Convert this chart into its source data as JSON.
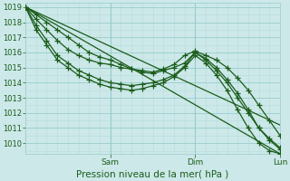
{
  "xlabel": "Pression niveau de la mer( hPa )",
  "ylim": [
    1009.3,
    1019.3
  ],
  "yticks": [
    1010,
    1011,
    1012,
    1013,
    1014,
    1015,
    1016,
    1017,
    1018,
    1019
  ],
  "xlim": [
    0,
    72
  ],
  "xtick_positions": [
    24,
    48,
    72
  ],
  "xtick_labels": [
    "Sam",
    "Dim",
    "Lun"
  ],
  "bg_color": "#cce8e8",
  "grid_major_color": "#99cccc",
  "grid_minor_color": "#b8dddd",
  "line_color": "#1a5c1a",
  "line_width": 0.9,
  "marker": "+",
  "marker_size": 4,
  "lines": [
    {
      "x": [
        0,
        72
      ],
      "y": [
        1019,
        1009.3
      ],
      "has_markers": false
    },
    {
      "x": [
        0,
        72
      ],
      "y": [
        1019,
        1011.2
      ],
      "has_markers": false
    },
    {
      "x": [
        0,
        3,
        6,
        9,
        12,
        15,
        18,
        21,
        24,
        27,
        30,
        33,
        36,
        39,
        42,
        45,
        48,
        51,
        54,
        57,
        60,
        63,
        66,
        69,
        72
      ],
      "y": [
        1019,
        1018.2,
        1017.5,
        1016.8,
        1016.2,
        1015.8,
        1015.5,
        1015.3,
        1015.2,
        1015.0,
        1014.9,
        1014.8,
        1014.7,
        1014.9,
        1015.2,
        1015.8,
        1016.1,
        1015.8,
        1015.5,
        1015.0,
        1014.3,
        1013.5,
        1012.5,
        1011.5,
        1010.5
      ],
      "has_markers": true
    },
    {
      "x": [
        0,
        3,
        6,
        9,
        12,
        15,
        18,
        21,
        24,
        27,
        30,
        33,
        36,
        39,
        42,
        45,
        48,
        51,
        54,
        57,
        60,
        63,
        66,
        69,
        72
      ],
      "y": [
        1019,
        1017.8,
        1016.8,
        1015.8,
        1015.3,
        1014.8,
        1014.5,
        1014.2,
        1014.0,
        1013.9,
        1013.8,
        1013.9,
        1014.0,
        1014.2,
        1014.5,
        1015.1,
        1016.0,
        1015.6,
        1015.0,
        1014.2,
        1013.3,
        1012.2,
        1011.0,
        1010.2,
        1009.6
      ],
      "has_markers": true
    },
    {
      "x": [
        0,
        3,
        6,
        9,
        12,
        15,
        18,
        21,
        24,
        27,
        30,
        33,
        36,
        39,
        42,
        45,
        48,
        51,
        54,
        57,
        60,
        63,
        66,
        69,
        72
      ],
      "y": [
        1019,
        1017.5,
        1016.5,
        1015.5,
        1015.0,
        1014.5,
        1014.2,
        1013.9,
        1013.7,
        1013.6,
        1013.5,
        1013.6,
        1013.8,
        1014.0,
        1014.4,
        1015.0,
        1015.8,
        1015.3,
        1014.5,
        1013.5,
        1012.2,
        1011.0,
        1010.0,
        1009.5,
        1009.3
      ],
      "has_markers": true
    },
    {
      "x": [
        0,
        3,
        6,
        9,
        12,
        15,
        18,
        21,
        24,
        27,
        30,
        33,
        36,
        39,
        42,
        45,
        48,
        51,
        54,
        57,
        60,
        63,
        66,
        69,
        72
      ],
      "y": [
        1019,
        1018.5,
        1018.0,
        1017.5,
        1017.0,
        1016.5,
        1016.0,
        1015.7,
        1015.5,
        1015.2,
        1014.9,
        1014.7,
        1014.6,
        1014.8,
        1015.0,
        1015.3,
        1016.0,
        1015.5,
        1014.8,
        1014.0,
        1013.0,
        1012.0,
        1011.0,
        1010.3,
        1009.7
      ],
      "has_markers": true
    }
  ]
}
